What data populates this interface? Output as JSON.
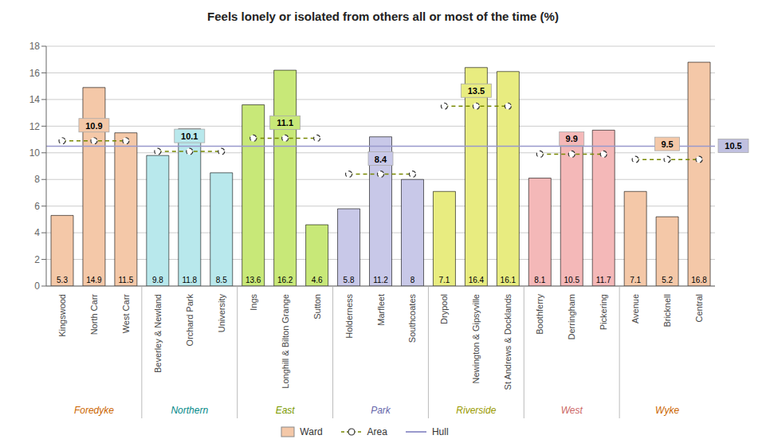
{
  "chart_data": {
    "type": "bar",
    "title": "Feels lonely or isolated from others all or most of the time (%)",
    "categories": [
      "Kingswood",
      "North Carr",
      "West Carr",
      "Beverley & Newland",
      "Orchard Park",
      "University",
      "Ings",
      "Longhill & Bilton Grange",
      "Sutton",
      "Holderness",
      "Marfleet",
      "Southcoates",
      "Drypool",
      "Newington & Gipsyville",
      "St Andrews & Docklands",
      "Boothferry",
      "Derringham",
      "Pickering",
      "Avenue",
      "Bricknell",
      "Central"
    ],
    "values": [
      5.3,
      14.9,
      11.5,
      9.8,
      11.8,
      8.5,
      13.6,
      16.2,
      4.6,
      5.8,
      11.2,
      8.0,
      7.1,
      16.4,
      16.1,
      8.1,
      10.5,
      11.7,
      7.1,
      5.2,
      16.8
    ],
    "value_name": "Ward",
    "colors": [
      "#F4C8A8",
      "#F4C8A8",
      "#F4C8A8",
      "#B8E8EC",
      "#B8E8EC",
      "#B8E8EC",
      "#C8E878",
      "#C8E878",
      "#C8E878",
      "#C8C8E8",
      "#C8C8E8",
      "#C8C8E8",
      "#E8EC80",
      "#E8EC80",
      "#E8EC80",
      "#F4B8B8",
      "#F4B8B8",
      "#F4B8B8",
      "#F4C8A8",
      "#F4C8A8",
      "#F4C8A8"
    ],
    "groups": {
      "name": "Area",
      "color": "#778800",
      "line_style": "dashed",
      "marker": "circle",
      "items": [
        {
          "name": "Foredyke",
          "categories": [
            "Kingswood",
            "North Carr",
            "West Carr"
          ],
          "value": 10.9,
          "box_color": "#F4C8A8",
          "label_color": "#cc6600"
        },
        {
          "name": "Northern",
          "categories": [
            "Beverley & Newland",
            "Orchard Park",
            "University"
          ],
          "value": 10.1,
          "box_color": "#B8E8EC",
          "label_color": "#008888"
        },
        {
          "name": "East",
          "categories": [
            "Ings",
            "Longhill & Bilton Grange",
            "Sutton"
          ],
          "value": 11.1,
          "box_color": "#C8E878",
          "label_color": "#7a9900"
        },
        {
          "name": "Park",
          "categories": [
            "Holderness",
            "Marfleet",
            "Southcoates"
          ],
          "value": 8.4,
          "box_color": "#C8C8E8",
          "label_color": "#6666aa"
        },
        {
          "name": "Riverside",
          "categories": [
            "Drypool",
            "Newington & Gipsyville",
            "St Andrews & Docklands"
          ],
          "value": 13.5,
          "box_color": "#E8EC80",
          "label_color": "#9a9a00"
        },
        {
          "name": "West",
          "categories": [
            "Boothferry",
            "Derringham",
            "Pickering"
          ],
          "value": 9.9,
          "box_color": "#F4B8B8",
          "label_color": "#cc6666"
        },
        {
          "name": "Wyke",
          "categories": [
            "Avenue",
            "Bricknell",
            "Central"
          ],
          "value": 9.5,
          "box_color": "#F4C8A8",
          "label_color": "#cc6600"
        }
      ]
    },
    "reference_line": {
      "name": "Hull",
      "value": 10.5,
      "color": "#9999CC",
      "box_color": "#C0C0E0"
    },
    "ylim": [
      0,
      18
    ],
    "yticks": [
      0,
      2,
      4,
      6,
      8,
      10,
      12,
      14,
      16,
      18
    ],
    "grid": true,
    "data_labels": true,
    "legend": "bottom"
  }
}
